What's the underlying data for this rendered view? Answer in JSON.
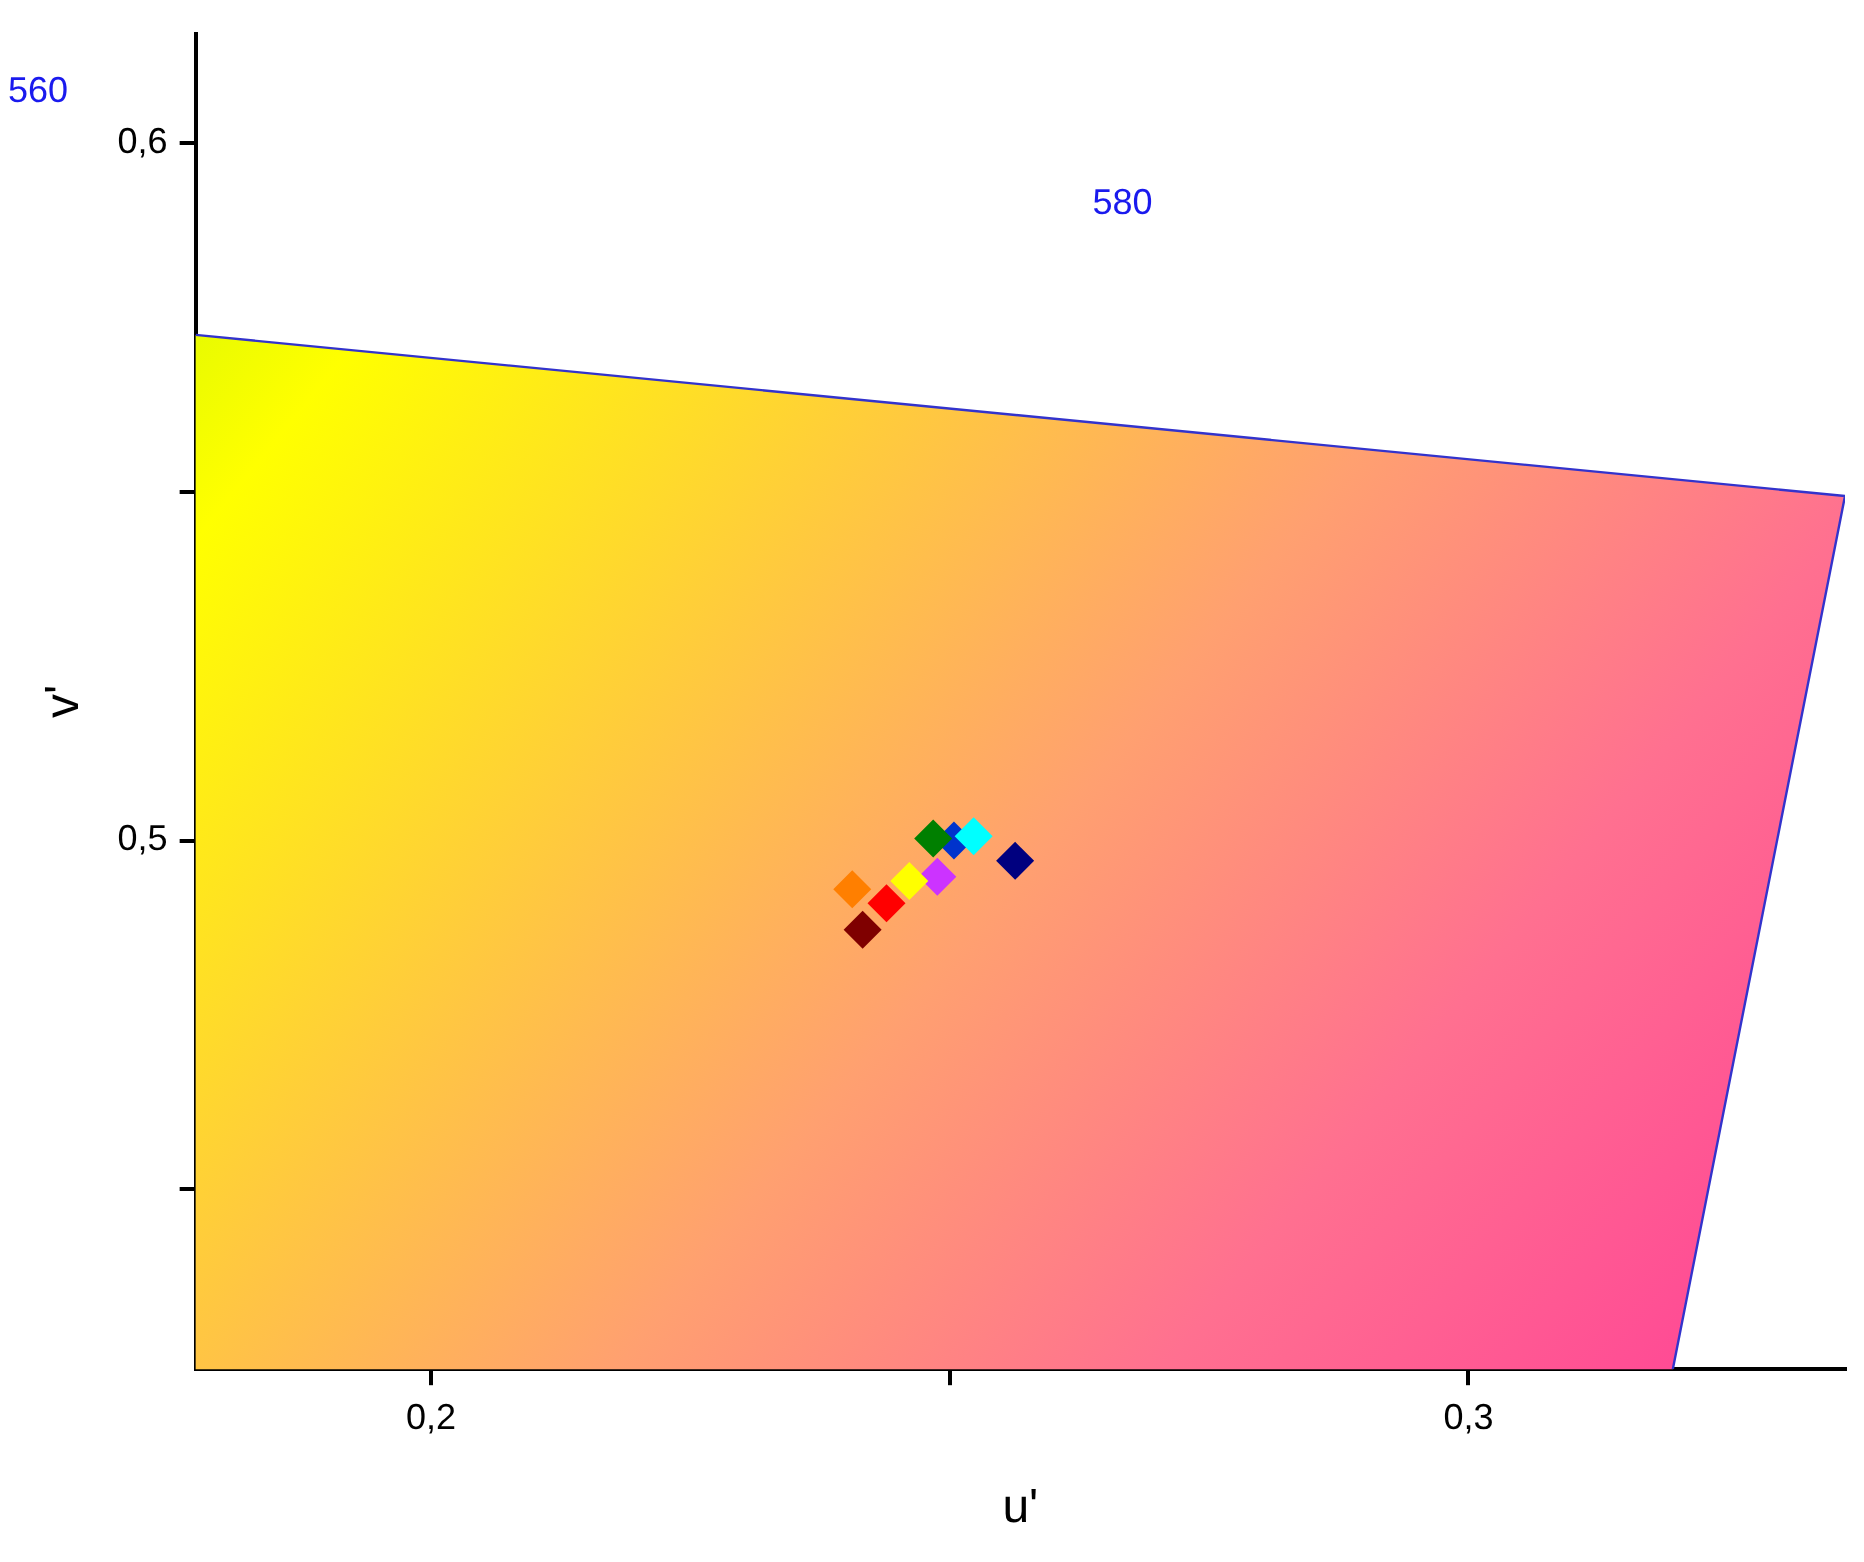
{
  "chart_data": {
    "type": "scatter",
    "xlabel": "u'",
    "ylabel": "v'",
    "xlim": [
      0.1773,
      0.3363
    ],
    "ylim": [
      0.4242,
      0.6157
    ],
    "xticks": [
      {
        "value": 0.2,
        "label": "0,2"
      },
      {
        "value": 0.25,
        "label": null
      },
      {
        "value": 0.3,
        "label": "0,3"
      }
    ],
    "yticks": [
      {
        "value": 0.45,
        "label": null
      },
      {
        "value": 0.5,
        "label": "0,5"
      },
      {
        "value": 0.55,
        "label": null
      },
      {
        "value": 0.6,
        "label": "0,6"
      }
    ],
    "grid": false,
    "legend": false,
    "marker": "diamond",
    "series": [
      {
        "type": "area",
        "color": "#3333cc",
        "marker": "none",
        "x": [
          0.1773,
          0.3363,
          0.3197
        ],
        "values": [
          0.5725,
          0.5494,
          0.4242
        ]
      },
      {
        "color": "#ff7f00",
        "x": [
          0.2406
        ],
        "values": [
          0.493
        ]
      },
      {
        "color": "#7f0000",
        "x": [
          0.2416
        ],
        "values": [
          0.4872
        ]
      },
      {
        "color": "#ff0000",
        "x": [
          0.2439
        ],
        "values": [
          0.491
        ]
      },
      {
        "color": "#ffff00",
        "x": [
          0.2461
        ],
        "values": [
          0.4942
        ]
      },
      {
        "color": "#cc33ff",
        "x": [
          0.2488
        ],
        "values": [
          0.4948
        ]
      },
      {
        "color": "#007f00",
        "x": [
          0.2484
        ],
        "values": [
          0.5003
        ]
      },
      {
        "color": "#00ffff",
        "x": [
          0.2523
        ],
        "values": [
          0.5006
        ]
      },
      {
        "color": "#0033cc",
        "x": [
          0.2504
        ],
        "values": [
          0.5
        ]
      },
      {
        "color": "#00007f",
        "x": [
          0.2563
        ],
        "values": [
          0.4971
        ]
      }
    ],
    "annotations": [
      "580",
      "560"
    ]
  }
}
